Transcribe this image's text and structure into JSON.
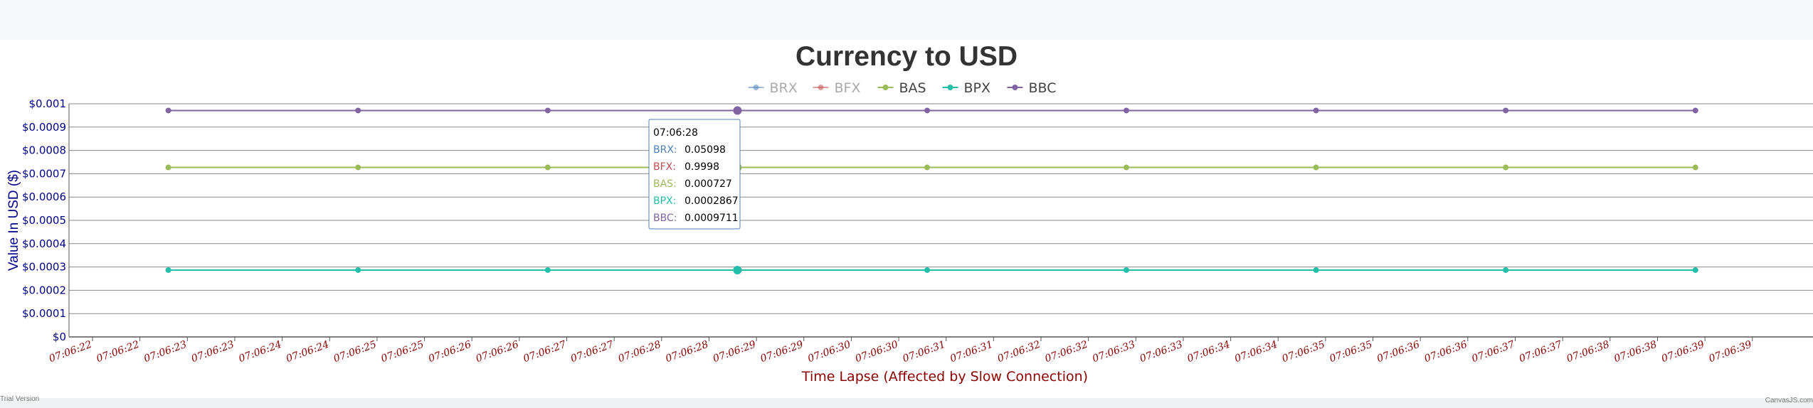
{
  "chart_data": {
    "type": "line",
    "title": "Currency to USD",
    "xlabel": "Time Lapse (Affected by Slow Connection)",
    "ylabel": "Value In USD ($)",
    "ylim": [
      0,
      0.001
    ],
    "y_ticks": [
      "$0",
      "$0.0001",
      "$0.0002",
      "$0.0003",
      "$0.0004",
      "$0.0005",
      "$0.0006",
      "$0.0007",
      "$0.0008",
      "$0.0009",
      "$0.001"
    ],
    "x_ticks": [
      "07:06:22",
      "07:06:22",
      "07:06:23",
      "07:06:23",
      "07:06:24",
      "07:06:24",
      "07:06:25",
      "07:06:25",
      "07:06:26",
      "07:06:26",
      "07:06:27",
      "07:06:27",
      "07:06:28",
      "07:06:28",
      "07:06:29",
      "07:06:29",
      "07:06:30",
      "07:06:30",
      "07:06:31",
      "07:06:31",
      "07:06:32",
      "07:06:32",
      "07:06:33",
      "07:06:33",
      "07:06:34",
      "07:06:34",
      "07:06:35",
      "07:06:35",
      "07:06:36",
      "07:06:36",
      "07:06:37",
      "07:06:37",
      "07:06:38",
      "07:06:38",
      "07:06:39",
      "07:06:39"
    ],
    "x": [
      "07:06:22.8",
      "07:06:24.8",
      "07:06:26.8",
      "07:06:28.8",
      "07:06:30.8",
      "07:06:32.9",
      "07:06:34.9",
      "07:06:36.9",
      "07:06:38.9"
    ],
    "grid": true,
    "legend_position": "top-center",
    "series": [
      {
        "name": "BRX",
        "color": "#4f81bc",
        "hidden": true,
        "values": [
          0.05098,
          0.05098,
          0.05098,
          0.05098,
          0.05098,
          0.05098,
          0.05098,
          0.05098,
          0.05098
        ]
      },
      {
        "name": "BFX",
        "color": "#c0504e",
        "hidden": true,
        "values": [
          0.9998,
          0.9998,
          0.9998,
          0.9998,
          0.9998,
          0.9998,
          0.9998,
          0.9998,
          0.9998
        ]
      },
      {
        "name": "BAS",
        "color": "#9bbb58",
        "hidden": false,
        "values": [
          0.000727,
          0.000727,
          0.000727,
          0.000727,
          0.000727,
          0.000727,
          0.000727,
          0.000727,
          0.000727
        ]
      },
      {
        "name": "BPX",
        "color": "#23bfaa",
        "hidden": false,
        "values": [
          0.0002867,
          0.0002867,
          0.0002867,
          0.0002867,
          0.0002867,
          0.0002867,
          0.0002867,
          0.0002867,
          0.0002867
        ]
      },
      {
        "name": "BBC",
        "color": "#8064a1",
        "hidden": false,
        "values": [
          0.0009711,
          0.0009711,
          0.0009711,
          0.0009711,
          0.0009711,
          0.0009711,
          0.0009711,
          0.0009711,
          0.0009711
        ]
      }
    ],
    "tooltip": {
      "title": "07:06:28",
      "point_index": 3,
      "rows": [
        {
          "name": "BRX",
          "value": "0.05098"
        },
        {
          "name": "BFX",
          "value": "0.9998"
        },
        {
          "name": "BAS",
          "value": "0.000727"
        },
        {
          "name": "BPX",
          "value": "0.0002867"
        },
        {
          "name": "BBC",
          "value": "0.0009711"
        }
      ]
    },
    "colors": {
      "title": "#333333",
      "axis_y": "#00008b",
      "axis_x": "#8b0000",
      "hidden_legend": "#aaaaaa"
    }
  },
  "footer": {
    "trial": "Trial Version",
    "credit": "CanvasJS.com"
  }
}
